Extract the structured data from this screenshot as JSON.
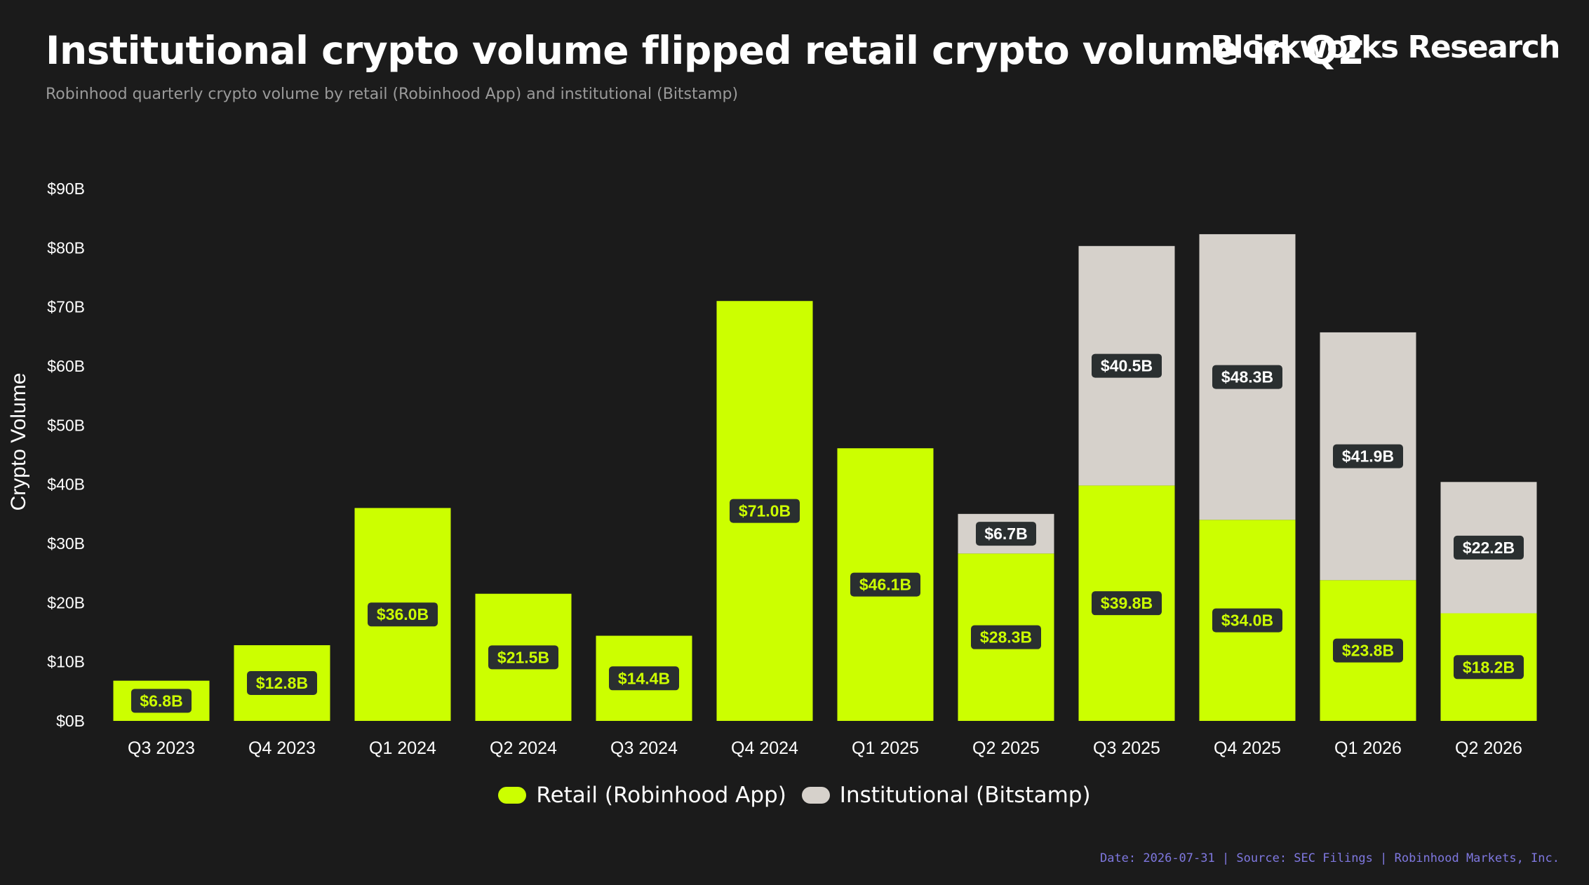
{
  "header": {
    "title": "Institutional crypto volume flipped retail crypto volume in Q2",
    "subtitle": "Robinhood quarterly crypto volume by retail (Robinhood App) and institutional (Bitstamp)",
    "brand": "Blockworks Research"
  },
  "footer": {
    "text": "Date: 2026-07-31  |  Source: SEC Filings | Robinhood Markets, Inc."
  },
  "colors": {
    "background": "#1b1b1b",
    "retail": "#ccff00",
    "institutional": "#d6d1cb",
    "label_bg": "#2a2f30"
  },
  "chart_data": {
    "type": "bar",
    "stacked": true,
    "ylabel": "Crypto Volume",
    "ylim": [
      0,
      90
    ],
    "yticks": [
      "$0B",
      "$10B",
      "$20B",
      "$30B",
      "$40B",
      "$50B",
      "$60B",
      "$70B",
      "$80B",
      "$90B"
    ],
    "categories": [
      "Q3 2023",
      "Q4 2023",
      "Q1 2024",
      "Q2 2024",
      "Q3 2024",
      "Q4 2024",
      "Q1 2025",
      "Q2 2025",
      "Q3 2025",
      "Q4 2025",
      "Q1 2026",
      "Q2 2026"
    ],
    "series": [
      {
        "name": "Retail (Robinhood App)",
        "values": [
          6.8,
          12.8,
          36.0,
          21.5,
          14.4,
          71.0,
          46.1,
          28.3,
          39.8,
          34.0,
          23.8,
          18.2
        ],
        "labels": [
          "$6.8B",
          "$12.8B",
          "$36.0B",
          "$21.5B",
          "$14.4B",
          "$71.0B",
          "$46.1B",
          "$28.3B",
          "$39.8B",
          "$34.0B",
          "$23.8B",
          "$18.2B"
        ]
      },
      {
        "name": "Institutional (Bitstamp)",
        "values": [
          null,
          null,
          null,
          null,
          null,
          null,
          null,
          6.7,
          40.5,
          48.3,
          41.9,
          22.2
        ],
        "labels": [
          null,
          null,
          null,
          null,
          null,
          null,
          null,
          "$6.7B",
          "$40.5B",
          "$48.3B",
          "$41.9B",
          "$22.2B"
        ]
      }
    ],
    "legend": "bottom-center",
    "grid": false
  }
}
